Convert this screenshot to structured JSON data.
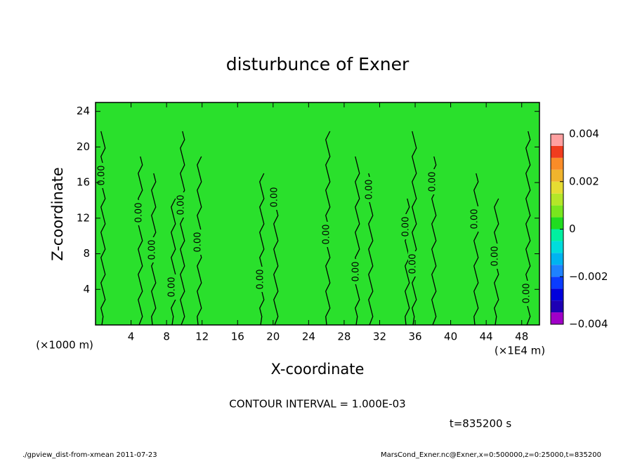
{
  "chart_data": {
    "type": "contour",
    "title": "disturbunce of Exner",
    "x_label": "X-coordinate",
    "y_label": "Z-coordinate",
    "x_unit": "(×1E4 m)",
    "y_unit": "(×1000 m)",
    "xlim": [
      0,
      50
    ],
    "ylim": [
      0,
      25
    ],
    "xticks": [
      4,
      8,
      12,
      16,
      20,
      24,
      28,
      32,
      36,
      40,
      44,
      48
    ],
    "yticks": [
      4,
      8,
      12,
      16,
      20,
      24
    ],
    "field_color": "#2ae02c",
    "contour_levels": [
      {
        "value": 0,
        "label": "0.00"
      }
    ],
    "colorbar": {
      "lim": [
        -0.004,
        0.004
      ],
      "ticks": [
        {
          "value": -0.004,
          "label": "−0.004"
        },
        {
          "value": -0.002,
          "label": "−0.002"
        },
        0,
        0.002,
        0.004
      ],
      "colors": [
        "#a000c8",
        "#1e00b4",
        "#0000dc",
        "#0a3cff",
        "#1e82ff",
        "#00b4f0",
        "#00dcdc",
        "#00f0a0",
        "#20dc20",
        "#78e61e",
        "#b4e628",
        "#e6dc32",
        "#f0b42d",
        "#fa8c28",
        "#f03c1e",
        "#ffa0a0"
      ]
    },
    "annotation": "CONTOUR INTERVAL = 1.000E-03",
    "time_label": "t=835200 s",
    "footer_left": "./gpview_dist-from-xmean  2011-07-23",
    "footer_right": "MarsCond_Exner.nc@Exner,x=0:500000,z=0:25000,t=835200"
  }
}
